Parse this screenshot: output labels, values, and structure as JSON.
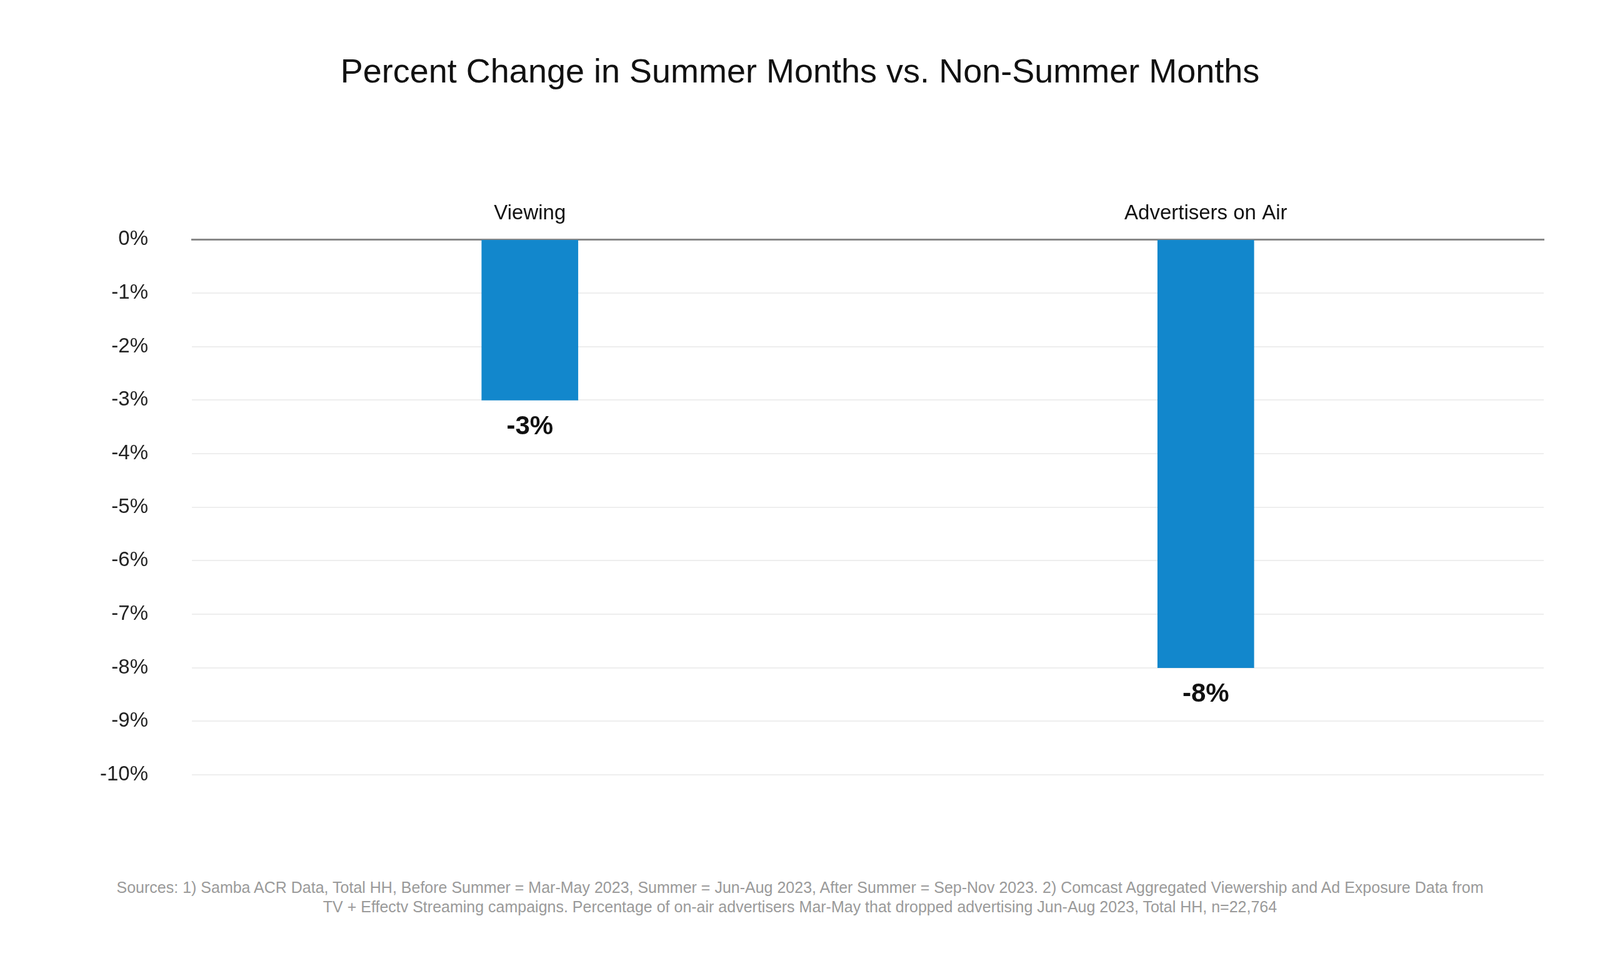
{
  "chart_data": {
    "type": "bar",
    "title": "Percent Change in Summer Months vs. Non-Summer Months",
    "categories": [
      "Viewing",
      "Advertisers on Air"
    ],
    "values": [
      -3,
      -8
    ],
    "value_labels": [
      "-3%",
      "-8%"
    ],
    "data_labels": true,
    "color": "#1287cc",
    "ylim": [
      -10,
      0
    ],
    "yticks": [
      {
        "value": -10,
        "label": "-10%"
      },
      {
        "value": -9,
        "label": "-9%"
      },
      {
        "value": -8,
        "label": "-8%"
      },
      {
        "value": -7,
        "label": "-7%"
      },
      {
        "value": -6,
        "label": "-6%"
      },
      {
        "value": -5,
        "label": "-5%"
      },
      {
        "value": -4,
        "label": "-4%"
      },
      {
        "value": -3,
        "label": "-3%"
      },
      {
        "value": -2,
        "label": "-2%"
      },
      {
        "value": -1,
        "label": "-1%"
      },
      {
        "value": 0,
        "label": "0%"
      }
    ],
    "grid": true,
    "source": "Sources:  1) Samba ACR Data, Total HH, Before Summer = Mar-May 2023, Summer = Jun-Aug 2023, After Summer = Sep-Nov 2023. 2) Comcast Aggregated Viewership and Ad Exposure Data from TV + Effectv Streaming campaigns. Percentage of on-air advertisers Mar-May that dropped advertising Jun-Aug 2023, Total HH, n=22,764"
  }
}
